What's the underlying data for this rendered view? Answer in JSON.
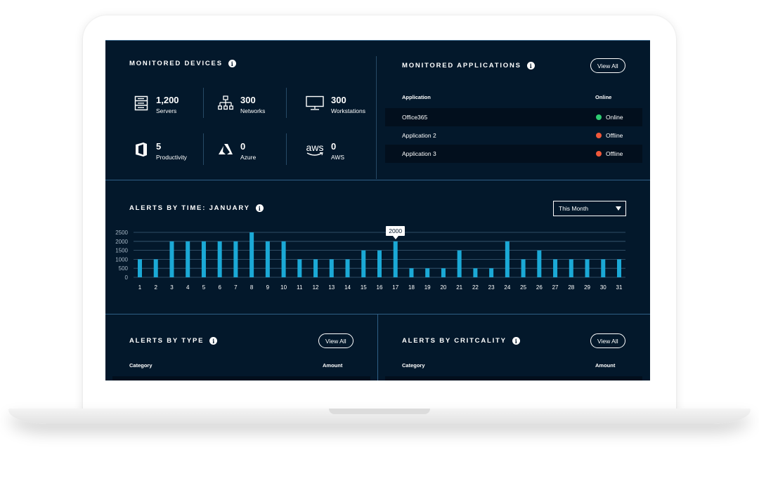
{
  "devices": {
    "title": "MONITORED DEVICES",
    "items": [
      {
        "icon": "server-list-icon",
        "value": "1,200",
        "label": "Servers"
      },
      {
        "icon": "network-tree-icon",
        "value": "300",
        "label": "Networks"
      },
      {
        "icon": "monitor-icon",
        "value": "300",
        "label": "Workstations"
      },
      {
        "icon": "office-icon",
        "value": "5",
        "label": "Productivity"
      },
      {
        "icon": "azure-icon",
        "value": "0",
        "label": "Azure"
      },
      {
        "icon": "aws-icon",
        "value": "0",
        "label": "AWS"
      }
    ],
    "aws_logo_text": "aws"
  },
  "applications": {
    "title": "MONITORED APPLICATIONS",
    "view_all": "View All",
    "col_application": "Application",
    "col_online": "Online",
    "rows": [
      {
        "name": "Office365",
        "status": "Online",
        "color": "#2ecc71"
      },
      {
        "name": "Application 2",
        "status": "Offline",
        "color": "#f0583a"
      },
      {
        "name": "Application 3",
        "status": "Offline",
        "color": "#f0583a"
      }
    ]
  },
  "alerts_time": {
    "title": "ALERTS BY TIME: JANUARY",
    "filter": "This Month",
    "tooltip": "2000"
  },
  "alerts_type": {
    "title": "ALERTS BY TYPE",
    "view_all": "View All",
    "col_category": "Category",
    "col_amount": "Amount"
  },
  "alerts_criticality": {
    "title": "ALERTS BY CRITCALITY",
    "view_all": "View All",
    "col_category": "Category",
    "col_amount": "Amount"
  },
  "colors": {
    "background": "#03182b",
    "bar": "#1ba9d6",
    "online": "#2ecc71",
    "offline": "#f0583a"
  },
  "chart_data": {
    "type": "bar",
    "title": "ALERTS BY TIME: JANUARY",
    "categories": [
      "1",
      "2",
      "3",
      "4",
      "5",
      "6",
      "7",
      "8",
      "9",
      "10",
      "11",
      "12",
      "13",
      "14",
      "15",
      "16",
      "17",
      "18",
      "19",
      "20",
      "21",
      "22",
      "23",
      "24",
      "25",
      "26",
      "27",
      "28",
      "29",
      "30",
      "31"
    ],
    "values": [
      1000,
      1000,
      2000,
      2000,
      2000,
      2000,
      2000,
      2500,
      2000,
      2000,
      1000,
      1000,
      1000,
      1000,
      1500,
      1500,
      2000,
      500,
      500,
      500,
      1500,
      500,
      500,
      2000,
      1000,
      1500,
      1000,
      1000,
      1000,
      1000,
      1000
    ],
    "yticks": [
      "2500",
      "2000",
      "1500",
      "1000",
      "500",
      "0"
    ],
    "ylim": [
      0,
      2500
    ],
    "grid": true,
    "highlight": {
      "category": "17",
      "label": "2000"
    }
  }
}
